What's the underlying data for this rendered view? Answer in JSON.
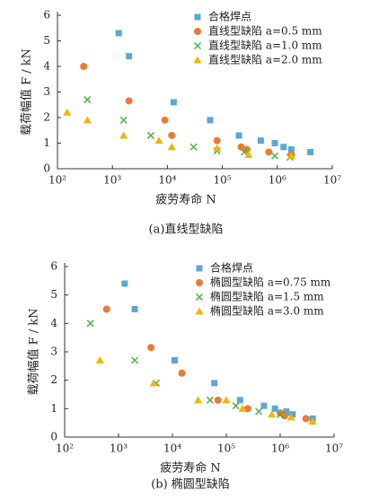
{
  "chart_data": [
    {
      "type": "scatter",
      "caption": "(a)直线型缺陷",
      "xlabel": "疲劳寿命 N",
      "ylabel": "载荷幅值 F / kN",
      "xscale": "log",
      "xlim": [
        100,
        10000000
      ],
      "xticks": [
        {
          "value": 100,
          "label": "10²"
        },
        {
          "value": 1000,
          "label": "10³"
        },
        {
          "value": 10000,
          "label": "10⁴"
        },
        {
          "value": 100000,
          "label": "10⁵"
        },
        {
          "value": 1000000,
          "label": "10⁶"
        },
        {
          "value": 10000000,
          "label": "10⁷"
        }
      ],
      "ylim": [
        0,
        6
      ],
      "yticks": [
        0,
        1,
        2,
        3,
        4,
        5,
        6
      ],
      "legend": "upper right",
      "series": [
        {
          "name": "合格焊点",
          "color": "#5aa7d8",
          "marker": "square",
          "x": [
            1300,
            2000,
            13000,
            60000,
            200000,
            500000,
            900000,
            1300000,
            1800000,
            4000000
          ],
          "values": [
            5.3,
            4.4,
            2.6,
            1.9,
            1.3,
            1.1,
            1.0,
            0.85,
            0.75,
            0.65
          ]
        },
        {
          "name": "直线型缺陷 a=0.5 mm",
          "color": "#ec7a30",
          "marker": "circle",
          "x": [
            300,
            2000,
            9000,
            12000,
            80000,
            220000,
            280000,
            700000,
            1800000
          ],
          "values": [
            4.0,
            2.65,
            1.9,
            1.3,
            1.1,
            0.85,
            0.75,
            0.65,
            0.55
          ]
        },
        {
          "name": "直线型缺陷 a=1.0 mm",
          "color": "#4cb04c",
          "marker": "x",
          "x": [
            350,
            1600,
            5000,
            30000,
            80000,
            250000,
            900000,
            1700000
          ],
          "values": [
            2.7,
            1.9,
            1.3,
            0.85,
            0.7,
            0.65,
            0.5,
            0.45
          ]
        },
        {
          "name": "直线型缺陷 a=2.0 mm",
          "color": "#f4b400",
          "marker": "triangle",
          "x": [
            150,
            350,
            1600,
            7000,
            12000,
            80000,
            300000,
            1800000
          ],
          "values": [
            2.2,
            1.9,
            1.3,
            1.1,
            0.85,
            0.8,
            0.55,
            0.5
          ]
        }
      ]
    },
    {
      "type": "scatter",
      "caption": "(b) 椭圆型缺陷",
      "xlabel": "疲劳寿命 N",
      "ylabel": "载荷幅值 F / kN",
      "xscale": "log",
      "xlim": [
        100,
        10000000
      ],
      "xticks": [
        {
          "value": 100,
          "label": "10²"
        },
        {
          "value": 1000,
          "label": "10³"
        },
        {
          "value": 10000,
          "label": "10⁴"
        },
        {
          "value": 100000,
          "label": "10⁵"
        },
        {
          "value": 1000000,
          "label": "10⁶"
        },
        {
          "value": 10000000,
          "label": "10⁷"
        }
      ],
      "ylim": [
        0,
        6
      ],
      "yticks": [
        0,
        1,
        2,
        3,
        4,
        5,
        6
      ],
      "legend": "upper right",
      "series": [
        {
          "name": "合格焊点",
          "color": "#5aa7d8",
          "marker": "square",
          "x": [
            1300,
            2000,
            11000,
            60000,
            180000,
            500000,
            800000,
            1300000,
            1700000,
            4000000
          ],
          "values": [
            5.4,
            4.5,
            2.7,
            1.9,
            1.3,
            1.1,
            1.0,
            0.9,
            0.8,
            0.65
          ]
        },
        {
          "name": "椭圆型缺陷 a=0.75 mm",
          "color": "#ec7a30",
          "marker": "circle",
          "x": [
            600,
            4000,
            15000,
            70000,
            250000,
            1000000,
            1200000,
            3000000
          ],
          "values": [
            4.5,
            3.15,
            2.25,
            1.3,
            1.0,
            0.85,
            0.75,
            0.65
          ]
        },
        {
          "name": "椭圆型缺陷 a=1.5 mm",
          "color": "#4cb04c",
          "marker": "x",
          "x": [
            300,
            2000,
            5000,
            50000,
            150000,
            400000,
            1000000,
            1600000
          ],
          "values": [
            4.0,
            2.7,
            1.9,
            1.3,
            1.1,
            0.9,
            0.8,
            0.7
          ]
        },
        {
          "name": "椭圆型缺陷 a=3.0 mm",
          "color": "#f4b400",
          "marker": "triangle",
          "x": [
            450,
            4500,
            30000,
            100000,
            200000,
            700000,
            1600000,
            4000000
          ],
          "values": [
            2.7,
            1.9,
            1.3,
            1.3,
            1.0,
            0.8,
            0.7,
            0.55
          ]
        }
      ]
    }
  ]
}
